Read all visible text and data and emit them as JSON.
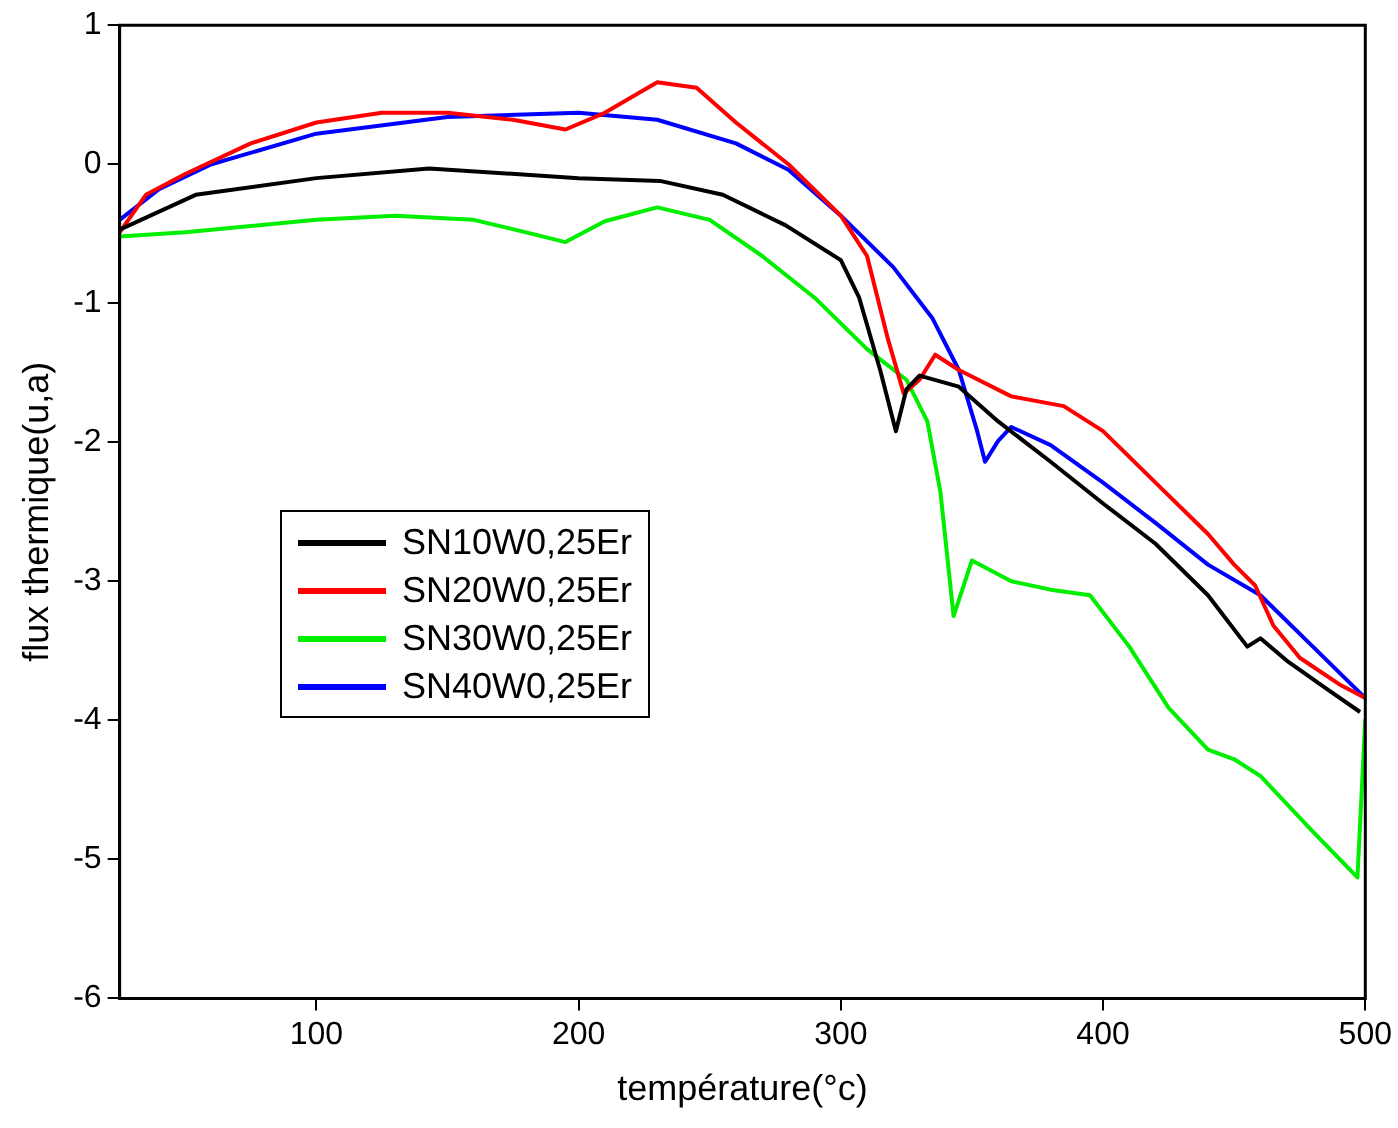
{
  "chart_data": {
    "type": "line",
    "xlabel": "température(°c)",
    "ylabel": "flux thermique(u,a)",
    "xlim": [
      25,
      500
    ],
    "ylim": [
      -6,
      1
    ],
    "xticks": [
      100,
      200,
      300,
      400,
      500
    ],
    "yticks": [
      -6,
      -5,
      -4,
      -3,
      -2,
      -1,
      0,
      1
    ],
    "grid": false,
    "legend": "left",
    "marker": "none",
    "line_style": "solid",
    "series": [
      {
        "name": "SN10W0,25Er",
        "color": "#000000",
        "x": [
          25,
          54,
          100,
          143,
          200,
          231,
          255,
          279,
          300,
          307,
          315,
          321,
          325,
          330,
          345,
          360,
          380,
          400,
          420,
          440,
          455,
          460,
          470,
          485,
          498
        ],
        "values": [
          -0.47,
          -0.22,
          -0.1,
          -0.03,
          -0.1,
          -0.12,
          -0.22,
          -0.44,
          -0.69,
          -0.96,
          -1.48,
          -1.92,
          -1.62,
          -1.52,
          -1.6,
          -1.85,
          -2.14,
          -2.44,
          -2.73,
          -3.1,
          -3.47,
          -3.41,
          -3.57,
          -3.77,
          -3.94
        ]
      },
      {
        "name": "SN20W0,25Er",
        "color": "#ff0000",
        "x": [
          25,
          35,
          50,
          75,
          100,
          125,
          150,
          175,
          195,
          210,
          230,
          245,
          260,
          280,
          300,
          310,
          318,
          324,
          330,
          336,
          345,
          365,
          385,
          400,
          420,
          440,
          450,
          458,
          465,
          475,
          490,
          500
        ],
        "values": [
          -0.49,
          -0.22,
          -0.07,
          0.15,
          0.3,
          0.37,
          0.37,
          0.32,
          0.25,
          0.37,
          0.59,
          0.55,
          0.3,
          0,
          -0.37,
          -0.66,
          -1.26,
          -1.65,
          -1.55,
          -1.37,
          -1.48,
          -1.67,
          -1.74,
          -1.92,
          -2.29,
          -2.66,
          -2.88,
          -3.03,
          -3.32,
          -3.55,
          -3.74,
          -3.84
        ]
      },
      {
        "name": "SN30W0,25Er",
        "color": "#00ee00",
        "x": [
          25,
          50,
          100,
          130,
          160,
          180,
          195,
          210,
          230,
          250,
          270,
          290,
          310,
          325,
          333,
          338,
          343,
          350,
          365,
          380,
          395,
          410,
          425,
          440,
          450,
          460,
          480,
          497,
          500
        ],
        "values": [
          -0.52,
          -0.49,
          -0.4,
          -0.37,
          -0.4,
          -0.49,
          -0.56,
          -0.41,
          -0.31,
          -0.4,
          -0.66,
          -0.96,
          -1.33,
          -1.55,
          -1.85,
          -2.36,
          -3.25,
          -2.85,
          -3,
          -3.06,
          -3.1,
          -3.47,
          -3.91,
          -4.21,
          -4.28,
          -4.4,
          -4.8,
          -5.13,
          -3.99
        ]
      },
      {
        "name": "SN40W0,25Er",
        "color": "#0000ff",
        "x": [
          25,
          40,
          60,
          100,
          150,
          200,
          230,
          260,
          280,
          300,
          320,
          335,
          345,
          352,
          355,
          360,
          365,
          380,
          400,
          420,
          440,
          460,
          480,
          500
        ],
        "values": [
          -0.4,
          -0.18,
          0,
          0.22,
          0.34,
          0.37,
          0.32,
          0.15,
          -0.04,
          -0.37,
          -0.74,
          -1.11,
          -1.48,
          -1.92,
          -2.14,
          -1.99,
          -1.89,
          -2.02,
          -2.29,
          -2.58,
          -2.88,
          -3.1,
          -3.47,
          -3.84
        ]
      }
    ]
  }
}
